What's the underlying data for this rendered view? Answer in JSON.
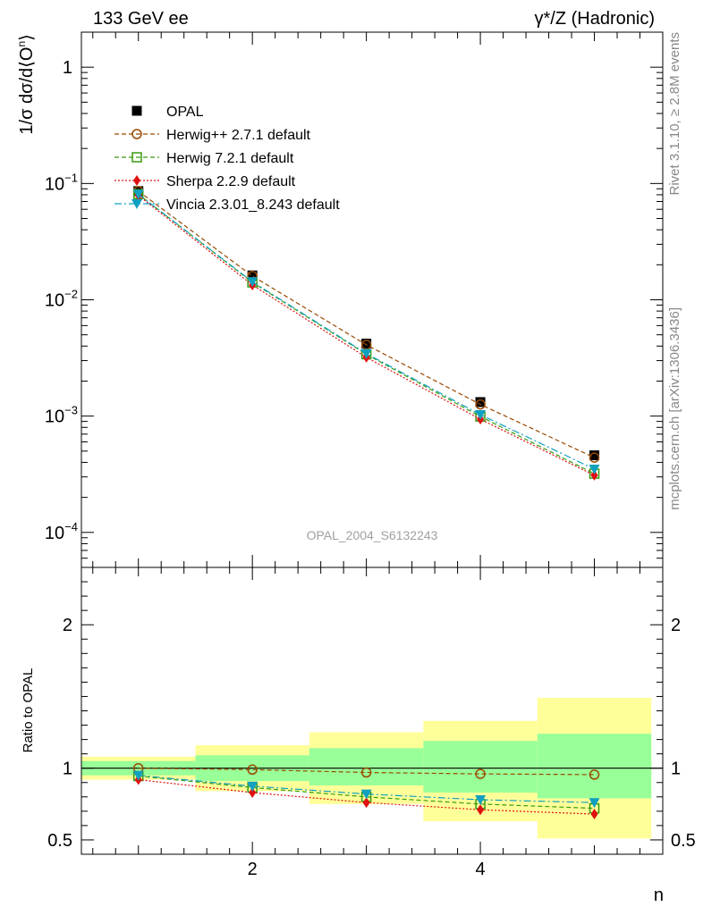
{
  "header": {
    "left": "133 GeV ee",
    "right": "γ*/Z (Hadronic)"
  },
  "side": {
    "rivet": "Rivet 3.1.10, ≥ 2.8M events",
    "mcplots": "mcplots.cern.ch [arXiv:1306.3436]"
  },
  "watermark": "OPAL_2004_S6132243",
  "colors": {
    "herwigpp": "#9a4a00",
    "herwig7": "#3a9a10",
    "sherpa": "#e01010",
    "vincia": "#10a0c0",
    "band_yellow": "#ffff99",
    "band_green": "#99ff99"
  },
  "chart_data": [
    {
      "type": "scatter",
      "ylabel": "1/σ dσ/d⟨O^n⟩",
      "yscale": "log",
      "ylim": [
        5e-05,
        2.0
      ],
      "xlim": [
        0.5,
        5.6
      ],
      "yticks": [
        {
          "v": 1,
          "label": "1"
        },
        {
          "v": 0.1,
          "base": "10",
          "exp": "−1"
        },
        {
          "v": 0.01,
          "base": "10",
          "exp": "−2"
        },
        {
          "v": 0.001,
          "base": "10",
          "exp": "−3"
        },
        {
          "v": 0.0001,
          "base": "10",
          "exp": "−4"
        }
      ],
      "series": [
        {
          "name": "OPAL",
          "key": "data",
          "x": [
            1,
            2,
            3,
            4,
            5
          ],
          "y": [
            0.086,
            0.0162,
            0.0042,
            0.00132,
            0.00046
          ]
        },
        {
          "name": "Herwig++ 2.7.1 default",
          "key": "herwigpp",
          "x": [
            1,
            2,
            3,
            4,
            5
          ],
          "y": [
            0.086,
            0.016,
            0.0041,
            0.00126,
            0.00044
          ]
        },
        {
          "name": "Herwig 7.2.1 default",
          "key": "herwig7",
          "x": [
            1,
            2,
            3,
            4,
            5
          ],
          "y": [
            0.081,
            0.0141,
            0.0034,
            0.00099,
            0.00032
          ]
        },
        {
          "name": "Sherpa 2.2.9 default",
          "key": "sherpa",
          "x": [
            1,
            2,
            3,
            4,
            5
          ],
          "y": [
            0.079,
            0.0134,
            0.0032,
            0.00094,
            0.00031
          ]
        },
        {
          "name": "Vincia 2.3.01_8.243 default",
          "key": "vincia",
          "x": [
            1,
            2,
            3,
            4,
            5
          ],
          "y": [
            0.081,
            0.0143,
            0.00345,
            0.00103,
            0.00035
          ]
        }
      ]
    },
    {
      "type": "line",
      "ylabel": "Ratio to OPAL",
      "xlabel": "n",
      "ylim": [
        0.4,
        2.4
      ],
      "xlim": [
        0.5,
        5.6
      ],
      "yticks": [
        0.5,
        1,
        2
      ],
      "xticks": [
        2,
        4
      ],
      "bands": [
        {
          "x0": 0.5,
          "x1": 1.5,
          "yellow": [
            0.92,
            1.08
          ],
          "green": [
            0.95,
            1.05
          ]
        },
        {
          "x0": 1.5,
          "x1": 2.5,
          "yellow": [
            0.84,
            1.16
          ],
          "green": [
            0.91,
            1.09
          ]
        },
        {
          "x0": 2.5,
          "x1": 3.5,
          "yellow": [
            0.75,
            1.25
          ],
          "green": [
            0.88,
            1.14
          ]
        },
        {
          "x0": 3.5,
          "x1": 4.5,
          "yellow": [
            0.63,
            1.33
          ],
          "green": [
            0.83,
            1.19
          ]
        },
        {
          "x0": 4.5,
          "x1": 5.5,
          "yellow": [
            0.51,
            1.49
          ],
          "green": [
            0.79,
            1.24
          ]
        }
      ],
      "series": [
        {
          "name": "Herwig++ 2.7.1 default",
          "key": "herwigpp",
          "x": [
            1,
            2,
            3,
            4,
            5
          ],
          "y": [
            1.0,
            0.99,
            0.97,
            0.96,
            0.955
          ]
        },
        {
          "name": "Herwig 7.2.1 default",
          "key": "herwig7",
          "x": [
            1,
            2,
            3,
            4,
            5
          ],
          "y": [
            0.945,
            0.865,
            0.8,
            0.75,
            0.72
          ]
        },
        {
          "name": "Sherpa 2.2.9 default",
          "key": "sherpa",
          "x": [
            1,
            2,
            3,
            4,
            5
          ],
          "y": [
            0.92,
            0.83,
            0.76,
            0.71,
            0.68
          ]
        },
        {
          "name": "Vincia 2.3.01_8.243 default",
          "key": "vincia",
          "x": [
            1,
            2,
            3,
            4,
            5
          ],
          "y": [
            0.95,
            0.875,
            0.82,
            0.78,
            0.76
          ]
        }
      ]
    }
  ]
}
